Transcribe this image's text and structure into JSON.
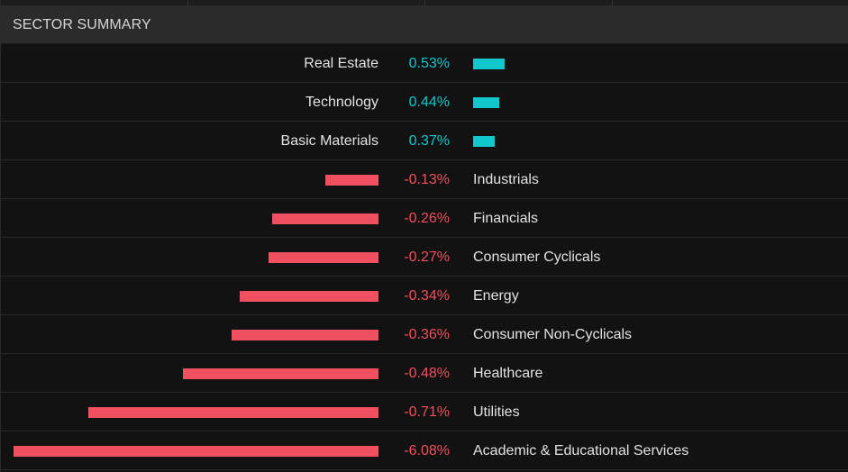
{
  "header": {
    "title": "SECTOR SUMMARY"
  },
  "colors": {
    "positive": "#10c8cc",
    "negative": "#f0505f",
    "background": "#121212",
    "header_bg": "#2b2b2b",
    "text": "#e2e2e2"
  },
  "chart_data": {
    "type": "bar",
    "orientation": "horizontal-diverging",
    "categories": [
      "Real Estate",
      "Technology",
      "Basic Materials",
      "Industrials",
      "Financials",
      "Consumer Cyclicals",
      "Energy",
      "Consumer Non-Cyclicals",
      "Healthcare",
      "Utilities",
      "Academic & Educational Services"
    ],
    "values": [
      0.53,
      0.44,
      0.37,
      -0.13,
      -0.26,
      -0.27,
      -0.34,
      -0.36,
      -0.48,
      -0.71,
      -6.08
    ],
    "value_labels": [
      "0.53%",
      "0.44%",
      "0.37%",
      "-0.13%",
      "-0.26%",
      "-0.27%",
      "-0.34%",
      "-0.36%",
      "-0.48%",
      "-0.71%",
      "-6.08%"
    ],
    "unit": "%"
  }
}
